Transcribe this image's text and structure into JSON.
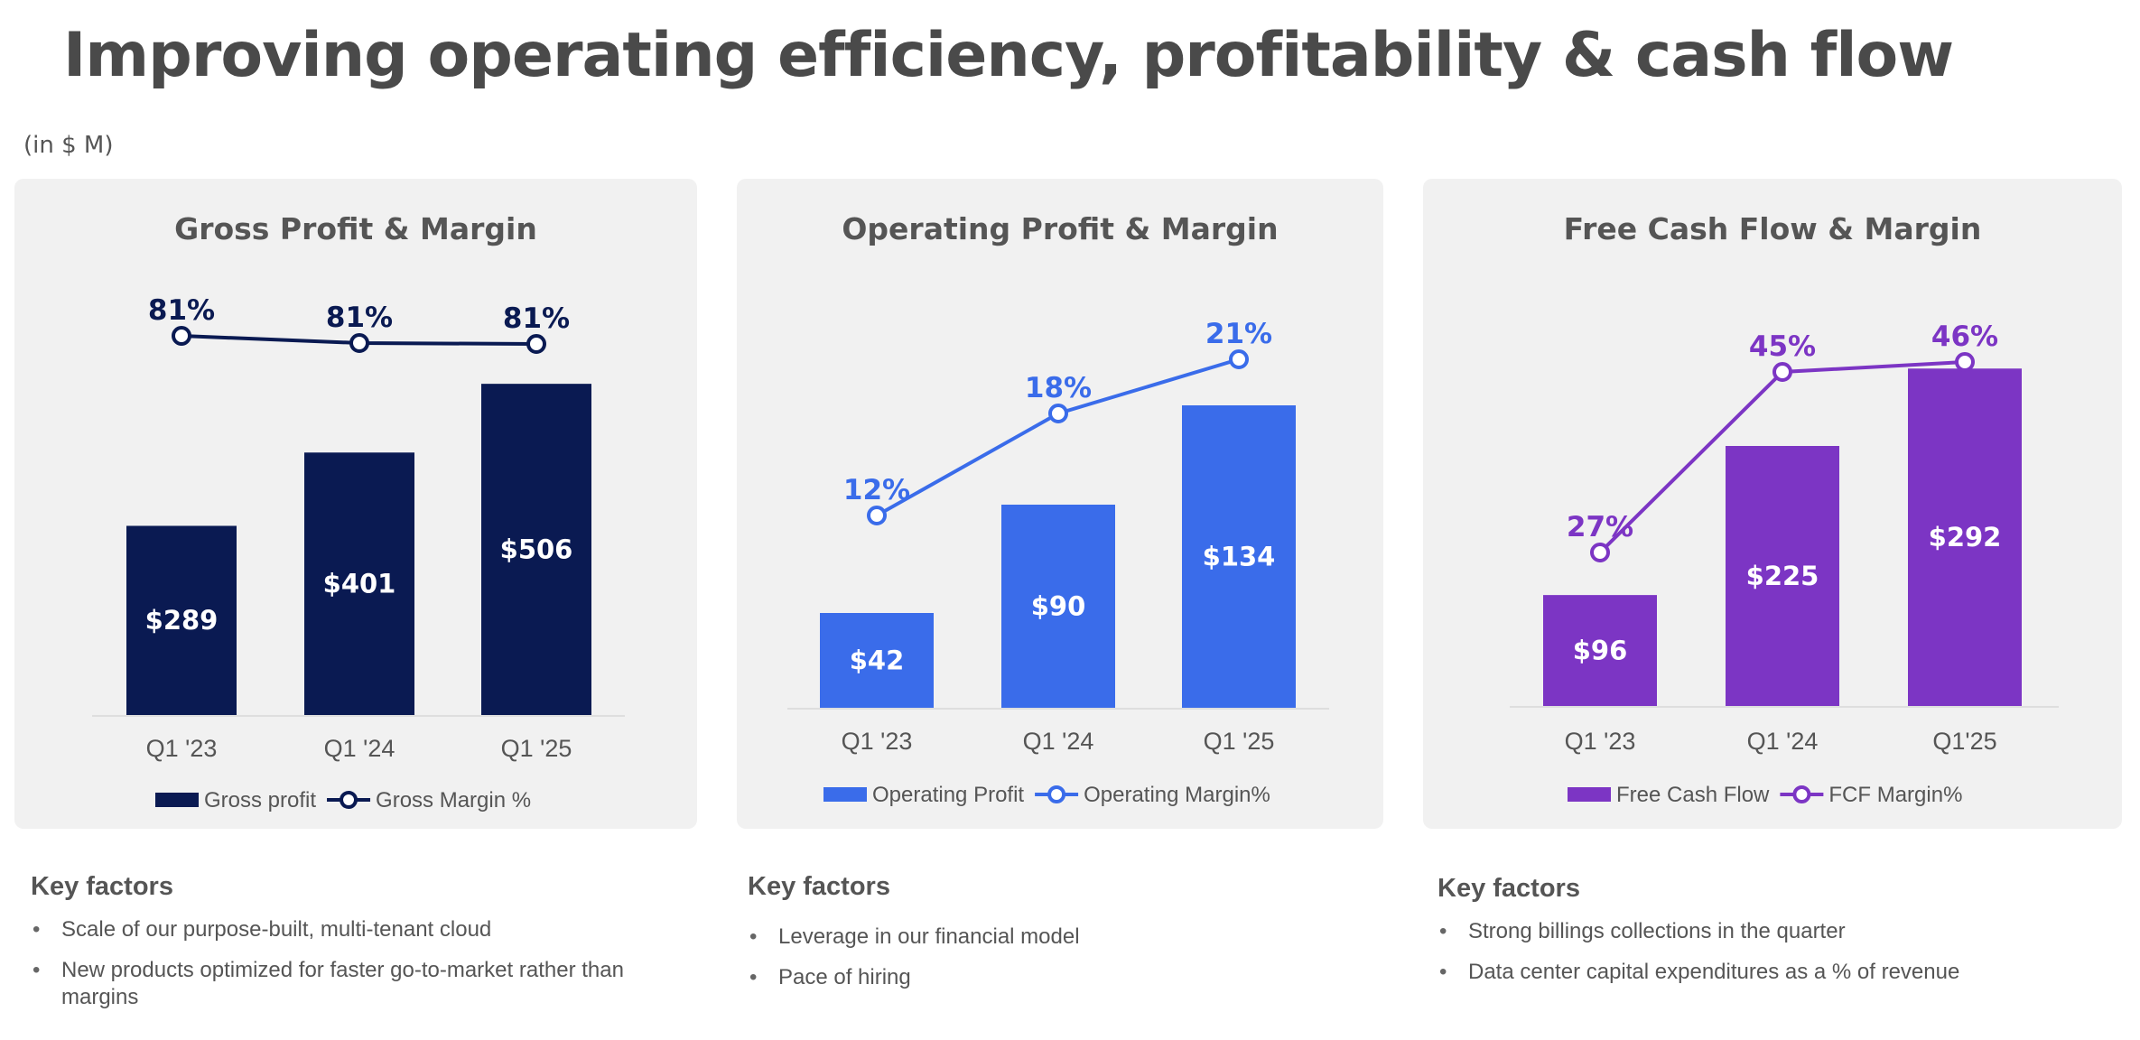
{
  "title": "Improving operating efficiency, profitability & cash flow",
  "units": "(in $ M)",
  "colors": {
    "navy": "#0a1a52",
    "blue": "#3a6cea",
    "purple": "#7c35c4",
    "panel_bg": "#f1f1f1"
  },
  "panels": [
    {
      "title": "Gross Profit & Margin",
      "legend": [
        "Gross profit",
        "Gross Margin %"
      ],
      "factors_title": "Key factors",
      "factors": [
        "Scale of our purpose-built, multi-tenant cloud",
        "New products optimized for faster go-to-market rather than margins"
      ]
    },
    {
      "title": "Operating Profit & Margin",
      "legend": [
        "Operating Profit",
        "Operating Margin%"
      ],
      "factors_title": "Key factors",
      "factors": [
        "Leverage in our financial model",
        "Pace of hiring"
      ]
    },
    {
      "title": "Free Cash Flow & Margin",
      "legend": [
        "Free Cash Flow",
        "FCF Margin%"
      ],
      "factors_title": "Key factors",
      "factors": [
        "Strong billings collections in the quarter",
        "Data center capital expenditures as a % of revenue"
      ]
    }
  ],
  "chart_data": [
    {
      "type": "bar",
      "title": "Gross Profit & Margin",
      "categories": [
        "Q1 '23",
        "Q1 '24",
        "Q1 '25"
      ],
      "series": [
        {
          "name": "Gross profit",
          "type": "bar",
          "values": [
            289,
            401,
            506
          ],
          "labels": [
            "$289",
            "$401",
            "$506"
          ]
        },
        {
          "name": "Gross Margin %",
          "type": "line",
          "values": [
            81,
            81,
            81
          ],
          "labels": [
            "81%",
            "81%",
            "81%"
          ]
        }
      ]
    },
    {
      "type": "bar",
      "title": "Operating Profit & Margin",
      "categories": [
        "Q1 '23",
        "Q1 '24",
        "Q1 '25"
      ],
      "series": [
        {
          "name": "Operating Profit",
          "type": "bar",
          "values": [
            42,
            90,
            134
          ],
          "labels": [
            "$42",
            "$90",
            "$134"
          ]
        },
        {
          "name": "Operating Margin%",
          "type": "line",
          "values": [
            12,
            18,
            21
          ],
          "labels": [
            "12%",
            "18%",
            "21%"
          ]
        }
      ]
    },
    {
      "type": "bar",
      "title": "Free Cash Flow & Margin",
      "categories": [
        "Q1 '23",
        "Q1 '24",
        "Q1'25"
      ],
      "series": [
        {
          "name": "Free Cash Flow",
          "type": "bar",
          "values": [
            96,
            225,
            292
          ],
          "labels": [
            "$96",
            "$225",
            "$292"
          ]
        },
        {
          "name": "FCF Margin%",
          "type": "line",
          "values": [
            27,
            45,
            46
          ],
          "labels": [
            "27%",
            "45%",
            "46%"
          ]
        }
      ]
    }
  ]
}
